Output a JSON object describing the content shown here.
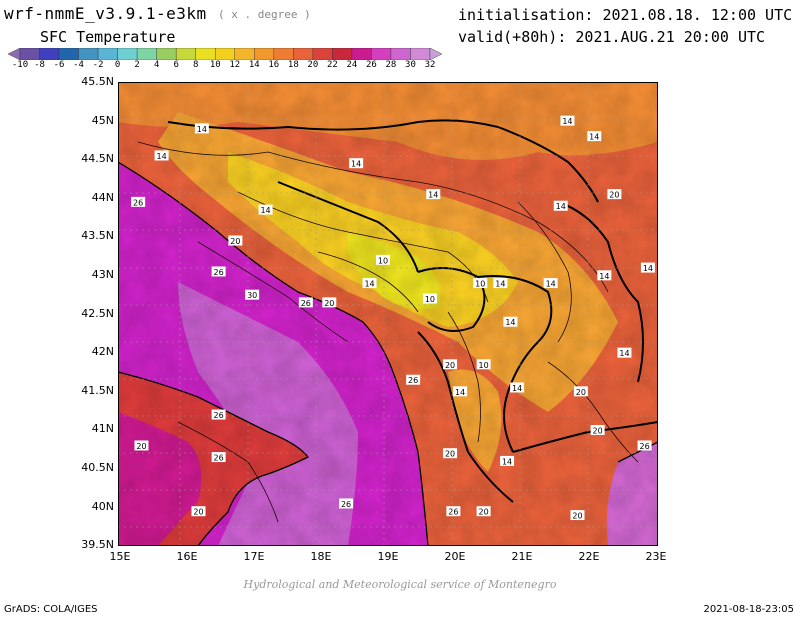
{
  "header": {
    "model_title": "wrf-nmmE_v3.9.1-e3km",
    "units": "( x . degree )",
    "variable_title": "SFC Temperature",
    "init_line": "initialisation: 2021.08.18. 12:00 UTC",
    "valid_line": "valid(+80h): 2021.AUG.21 20:00 UTC"
  },
  "colorbar": {
    "ticks": [
      "-10",
      "-8",
      "-6",
      "-4",
      "-2",
      "0",
      "2",
      "4",
      "6",
      "8",
      "10",
      "12",
      "14",
      "16",
      "18",
      "20",
      "22",
      "24",
      "26",
      "28",
      "30",
      "32"
    ],
    "colors": [
      "#8c6bb1",
      "#6a51a3",
      "#3f3fbf",
      "#2166ac",
      "#4393c3",
      "#5ab4d6",
      "#6ecfd0",
      "#7fd4a3",
      "#9acd5f",
      "#c6d83a",
      "#e8e020",
      "#f4d01e",
      "#f5b52a",
      "#f2992e",
      "#ee7d33",
      "#e8623a",
      "#d9433a",
      "#c7283a",
      "#cc1a8f",
      "#d53fbf",
      "#cf66cf",
      "#d18ad6",
      "#c6a0d6"
    ]
  },
  "map": {
    "lat_labels": [
      "45.5N",
      "45N",
      "44.5N",
      "44N",
      "43.5N",
      "43N",
      "42.5N",
      "42N",
      "41.5N",
      "41N",
      "40.5N",
      "40N",
      "39.5N"
    ],
    "lon_labels": [
      "15E",
      "16E",
      "17E",
      "18E",
      "19E",
      "20E",
      "21E",
      "22E",
      "23E"
    ],
    "isotherm_labels": [
      {
        "text": "14",
        "lon": 16.25,
        "lat": 44.9
      },
      {
        "text": "14",
        "lon": 15.65,
        "lat": 44.55
      },
      {
        "text": "14",
        "lon": 18.55,
        "lat": 44.45
      },
      {
        "text": "14",
        "lon": 19.7,
        "lat": 44.05
      },
      {
        "text": "14",
        "lon": 17.2,
        "lat": 43.85
      },
      {
        "text": "14",
        "lon": 21.7,
        "lat": 45.0
      },
      {
        "text": "14",
        "lon": 22.1,
        "lat": 44.8
      },
      {
        "text": "14",
        "lon": 21.6,
        "lat": 43.9
      },
      {
        "text": "14",
        "lon": 22.9,
        "lat": 43.1
      },
      {
        "text": "14",
        "lon": 20.7,
        "lat": 42.9
      },
      {
        "text": "14",
        "lon": 21.45,
        "lat": 42.9
      },
      {
        "text": "14",
        "lon": 22.25,
        "lat": 43.0
      },
      {
        "text": "14",
        "lon": 18.75,
        "lat": 42.9
      },
      {
        "text": "14",
        "lon": 20.85,
        "lat": 42.4
      },
      {
        "text": "14",
        "lon": 22.55,
        "lat": 42.0
      },
      {
        "text": "14",
        "lon": 20.1,
        "lat": 41.5
      },
      {
        "text": "14",
        "lon": 20.95,
        "lat": 41.55
      },
      {
        "text": "14",
        "lon": 20.8,
        "lat": 40.6
      },
      {
        "text": "10",
        "lon": 18.95,
        "lat": 43.2
      },
      {
        "text": "10",
        "lon": 19.65,
        "lat": 42.7
      },
      {
        "text": "10",
        "lon": 20.4,
        "lat": 42.9
      },
      {
        "text": "10",
        "lon": 20.45,
        "lat": 41.85
      },
      {
        "text": "20",
        "lon": 22.4,
        "lat": 44.05
      },
      {
        "text": "20",
        "lon": 16.75,
        "lat": 43.45
      },
      {
        "text": "20",
        "lon": 18.15,
        "lat": 42.65
      },
      {
        "text": "20",
        "lon": 19.95,
        "lat": 41.85
      },
      {
        "text": "20",
        "lon": 21.9,
        "lat": 41.5
      },
      {
        "text": "20",
        "lon": 22.15,
        "lat": 41.0
      },
      {
        "text": "20",
        "lon": 15.35,
        "lat": 40.8
      },
      {
        "text": "20",
        "lon": 19.95,
        "lat": 40.7
      },
      {
        "text": "20",
        "lon": 16.2,
        "lat": 39.95
      },
      {
        "text": "20",
        "lon": 20.45,
        "lat": 39.95
      },
      {
        "text": "20",
        "lon": 21.85,
        "lat": 39.9
      },
      {
        "text": "26",
        "lon": 15.3,
        "lat": 43.95
      },
      {
        "text": "26",
        "lon": 16.5,
        "lat": 43.05
      },
      {
        "text": "26",
        "lon": 17.8,
        "lat": 42.65
      },
      {
        "text": "26",
        "lon": 19.4,
        "lat": 41.65
      },
      {
        "text": "26",
        "lon": 16.5,
        "lat": 41.2
      },
      {
        "text": "26",
        "lon": 16.5,
        "lat": 40.65
      },
      {
        "text": "26",
        "lon": 18.4,
        "lat": 40.05
      },
      {
        "text": "26",
        "lon": 20.0,
        "lat": 39.95
      },
      {
        "text": "26",
        "lon": 22.85,
        "lat": 40.8
      },
      {
        "text": "30",
        "lon": 17.0,
        "lat": 42.75
      }
    ]
  },
  "footer": {
    "credit": "Hydrological and Meteorological service of Montenegro",
    "grads": "GrADS: COLA/IGES",
    "timestamp": "2021-08-18-23:05"
  }
}
